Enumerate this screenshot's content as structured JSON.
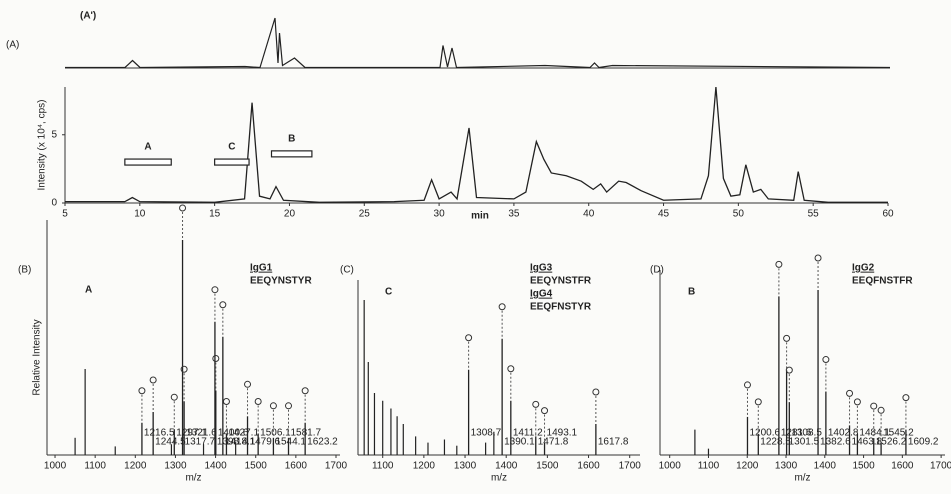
{
  "chart_data": [
    {
      "type": "trace",
      "title": "(A')",
      "subtitle": "(A)",
      "x": [
        5,
        9,
        9.5,
        10,
        17,
        18,
        19,
        19.2,
        19.3,
        19.5,
        20.3,
        21,
        30,
        30.2,
        30.5,
        30.8,
        31.1,
        37,
        40,
        40.3,
        40.6,
        41.5,
        60
      ],
      "values": [
        0.01,
        0.01,
        0.15,
        0.01,
        0.03,
        0.01,
        1,
        0.1,
        0.7,
        0.05,
        0.2,
        0.01,
        0.01,
        0.45,
        0.02,
        0.4,
        0.01,
        0.05,
        0.01,
        0.1,
        0.01,
        0.05,
        0.01
      ]
    },
    {
      "type": "line",
      "ylabel": "Intensity (x 10⁴, cps)",
      "xlabel": "min",
      "x": [
        5,
        9,
        9.5,
        10,
        15,
        17,
        17.5,
        18,
        18.7,
        19.1,
        19.6,
        22,
        27,
        29,
        29.5,
        30,
        30.8,
        31.2,
        32,
        32.5,
        35,
        35.8,
        36.5,
        37,
        37.5,
        38.5,
        39.5,
        40.3,
        40.8,
        41.2,
        42,
        42.5,
        43.5,
        45,
        47.5,
        48,
        48.5,
        49,
        49.5,
        50.1,
        50.5,
        51,
        51.5,
        52,
        53.7,
        54,
        54.4,
        56,
        60
      ],
      "values": [
        0.1,
        0.1,
        0.4,
        0.1,
        0.05,
        0.3,
        7.35,
        0.5,
        0.3,
        1.2,
        0.2,
        0.05,
        0.1,
        0.2,
        1.7,
        0.3,
        0.8,
        0.3,
        5.5,
        0.4,
        0.3,
        0.8,
        4.5,
        3.2,
        2.2,
        2,
        1.6,
        1,
        1.4,
        0.8,
        1.6,
        1.5,
        0.9,
        0.2,
        0.3,
        2,
        8.5,
        1.8,
        0.5,
        0.6,
        2.8,
        0.8,
        1,
        0.3,
        0.2,
        2.3,
        0.2,
        0.05,
        0.05
      ],
      "xlim": [
        5,
        60
      ],
      "ylim": [
        0,
        8.5
      ],
      "xticks": [
        5,
        10,
        15,
        20,
        25,
        30,
        35,
        40,
        45,
        50,
        55,
        60
      ],
      "yticks": [
        0,
        5
      ],
      "annotations": [
        {
          "text": "A",
          "x": [
            9,
            12.1
          ],
          "y": 3
        },
        {
          "text": "C",
          "x": [
            15,
            17.3
          ],
          "y": 3
        },
        {
          "text": "B",
          "x": [
            18.8,
            21.5
          ],
          "y": 3.6
        }
      ]
    },
    {
      "type": "spectrum",
      "title": "(B)",
      "subtitle": "A",
      "ylabel": "Relative Intensity",
      "xlabel": "m/z",
      "annotations": [
        "IgG1",
        "EEQYNSTYR"
      ],
      "xlim": [
        980,
        1710
      ],
      "xticks": [
        1000,
        1100,
        1200,
        1300,
        1400,
        1500,
        1600,
        1700
      ],
      "x": [
        1216.5,
        1244.5,
        1297.1,
        1317.7,
        1321.6,
        1398.4,
        1400.6,
        1418.1,
        1427.1,
        1479.6,
        1506.1,
        1544.1,
        1581.7,
        1623.2
      ],
      "values": [
        15,
        20,
        12,
        100,
        25,
        62,
        30,
        55,
        10,
        18,
        10,
        8,
        8,
        15
      ],
      "minor_x": [
        1050,
        1075,
        1150,
        1290,
        1370,
        1450
      ],
      "minor_values": [
        8,
        40,
        4,
        5,
        5,
        6
      ]
    },
    {
      "type": "spectrum",
      "title": "(C)",
      "subtitle": "C",
      "xlabel": "m/z",
      "annotations": [
        "IgG3",
        "EEQYNSTFR",
        "IgG4",
        "EEQFNSTYR"
      ],
      "xlim": [
        1040,
        1725
      ],
      "xticks": [
        1100,
        1200,
        1300,
        1400,
        1500,
        1600,
        1700
      ],
      "x": [
        1308.7,
        1390.1,
        1411.2,
        1471.8,
        1493.1,
        1617.8
      ],
      "values": [
        55,
        75,
        35,
        12,
        8,
        20
      ],
      "minor_x": [
        1055,
        1065,
        1080,
        1100,
        1120,
        1135,
        1150,
        1180,
        1210,
        1250,
        1280,
        1350,
        1370
      ],
      "minor_values": [
        100,
        60,
        40,
        35,
        30,
        25,
        20,
        12,
        8,
        10,
        6,
        8,
        15
      ]
    },
    {
      "type": "spectrum",
      "title": "(D)",
      "subtitle": "B",
      "xlabel": "m/z",
      "annotations": [
        "IgG2",
        "EEQFNSTFR"
      ],
      "xlim": [
        975,
        1710
      ],
      "xticks": [
        1000,
        1100,
        1200,
        1300,
        1400,
        1500,
        1600,
        1700
      ],
      "x": [
        1200.6,
        1228.5,
        1281.6,
        1301.5,
        1308.5,
        1382.6,
        1402.8,
        1463.8,
        1484.1,
        1526.2,
        1545.2,
        1609.2
      ],
      "values": [
        18,
        10,
        75,
        40,
        25,
        78,
        30,
        14,
        10,
        8,
        6,
        12
      ],
      "minor_x": [
        1065,
        1100
      ],
      "minor_values": [
        12,
        3
      ]
    }
  ]
}
